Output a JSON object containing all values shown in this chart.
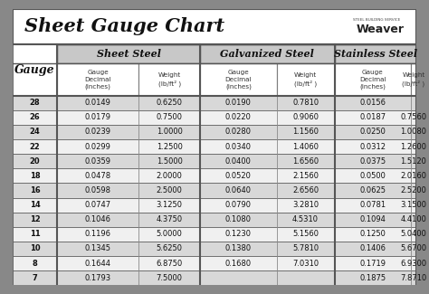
{
  "title": "Sheet Gauge Chart",
  "bg_outer": "#888888",
  "bg_white": "#ffffff",
  "bg_title": "#ffffff",
  "bg_header_section": "#c8c8c8",
  "bg_header_sub": "#ffffff",
  "bg_row_dark": "#d8d8d8",
  "bg_row_light": "#f0f0f0",
  "border_color": "#555555",
  "text_dark": "#111111",
  "gauges": [
    28,
    26,
    24,
    22,
    20,
    18,
    16,
    14,
    12,
    11,
    10,
    8,
    7
  ],
  "sheet_steel": [
    [
      "0.0149",
      "0.6250"
    ],
    [
      "0.0179",
      "0.7500"
    ],
    [
      "0.0239",
      "1.0000"
    ],
    [
      "0.0299",
      "1.2500"
    ],
    [
      "0.0359",
      "1.5000"
    ],
    [
      "0.0478",
      "2.0000"
    ],
    [
      "0.0598",
      "2.5000"
    ],
    [
      "0.0747",
      "3.1250"
    ],
    [
      "0.1046",
      "4.3750"
    ],
    [
      "0.1196",
      "5.0000"
    ],
    [
      "0.1345",
      "5.6250"
    ],
    [
      "0.1644",
      "6.8750"
    ],
    [
      "0.1793",
      "7.5000"
    ]
  ],
  "galvanized_steel": [
    [
      "0.0190",
      "0.7810"
    ],
    [
      "0.0220",
      "0.9060"
    ],
    [
      "0.0280",
      "1.1560"
    ],
    [
      "0.0340",
      "1.4060"
    ],
    [
      "0.0400",
      "1.6560"
    ],
    [
      "0.0520",
      "2.1560"
    ],
    [
      "0.0640",
      "2.6560"
    ],
    [
      "0.0790",
      "3.2810"
    ],
    [
      "0.1080",
      "4.5310"
    ],
    [
      "0.1230",
      "5.1560"
    ],
    [
      "0.1380",
      "5.7810"
    ],
    [
      "0.1680",
      "7.0310"
    ],
    [
      "",
      ""
    ]
  ],
  "stainless_steel": [
    [
      "0.0156",
      ""
    ],
    [
      "0.0187",
      "0.7560"
    ],
    [
      "0.0250",
      "1.0080"
    ],
    [
      "0.0312",
      "1.2600"
    ],
    [
      "0.0375",
      "1.5120"
    ],
    [
      "0.0500",
      "2.0160"
    ],
    [
      "0.0625",
      "2.5200"
    ],
    [
      "0.0781",
      "3.1500"
    ],
    [
      "0.1094",
      "4.4100"
    ],
    [
      "0.1250",
      "5.0400"
    ],
    [
      "0.1406",
      "5.6700"
    ],
    [
      "0.1719",
      "6.9300"
    ],
    [
      "0.1875",
      "7.8710"
    ]
  ],
  "section_labels": [
    "Sheet Steel",
    "Galvanized Steel",
    "Stainless Steel"
  ],
  "sub_label_dec": "Gauge\nDecimal\n(inches)",
  "sub_label_wt": "Weight\n(lb/ft² )",
  "gauge_label": "Gauge"
}
